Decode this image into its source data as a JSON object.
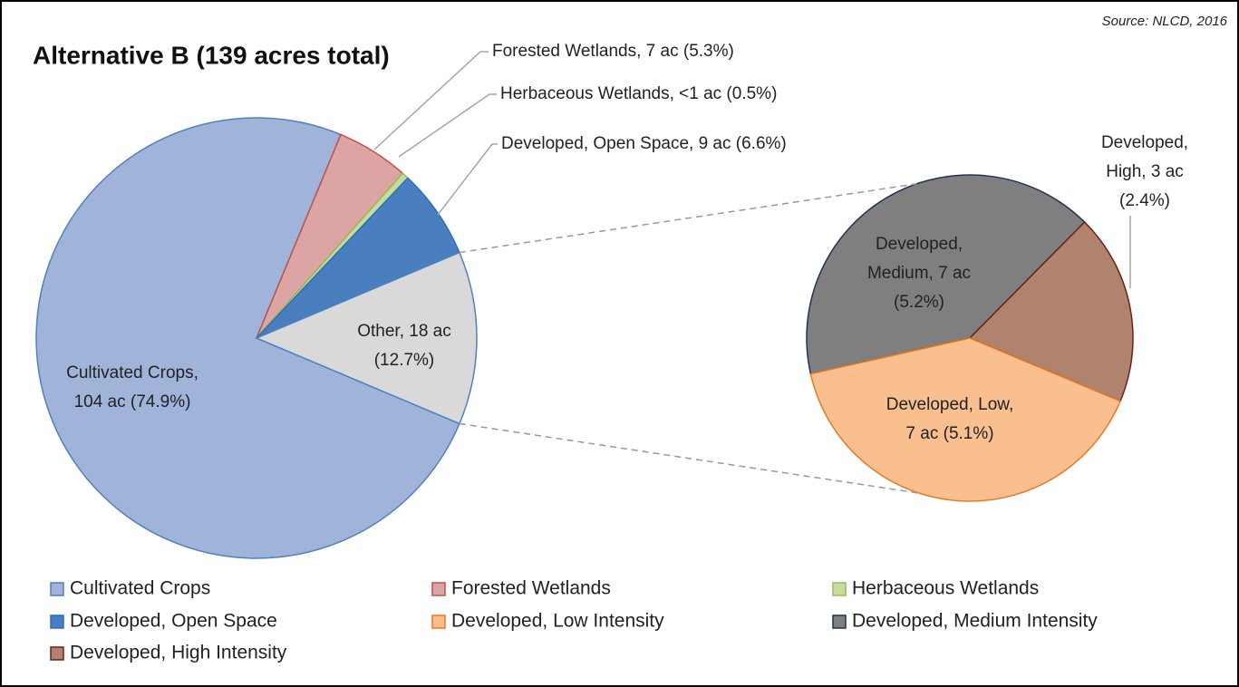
{
  "chart_data": {
    "type": "pie-of-pie",
    "title": "Alternative B (139 acres total)",
    "source": "Source:  NLCD, 2016",
    "pies": [
      {
        "values": [
          74.9,
          5.3,
          0.5,
          6.6,
          12.7
        ],
        "value_labels": [
          [
            "Cultivated Crops,",
            "104 ac (74.9%)"
          ],
          [
            "Forested Wetlands, 7 ac (5.3%)"
          ],
          [
            "Herbaceous Wetlands, <1 ac (0.5%)"
          ],
          [
            "Developed, Open Space, 9 ac (6.6%)"
          ],
          [
            "Other, 18 ac",
            "(12.7%)"
          ]
        ],
        "colors": [
          "#a0b4da",
          "#dca4a3",
          "#c4dd9f",
          "#4a7fbf",
          "#d9d9d9"
        ],
        "strokes": [
          "#4f81bd",
          "#c0504d",
          "#9bbb59",
          "#2e6db5",
          "#4f81bd"
        ]
      },
      {
        "values": [
          5.2,
          2.4,
          5.1
        ],
        "value_labels": [
          [
            "Developed,",
            "Medium, 7 ac",
            "(5.2%)"
          ],
          [
            "Developed,",
            "High, 3 ac",
            "(2.4%)"
          ],
          [
            "Developed, Low,",
            "7 ac (5.1%)"
          ]
        ],
        "colors": [
          "#7f7f7f",
          "#b0836f",
          "#f9bf8f"
        ],
        "strokes": [
          "#1f3552",
          "#6b2020",
          "#e8791f"
        ]
      }
    ],
    "legend": [
      {
        "name": "Cultivated Crops",
        "color": "#a0b4da",
        "stroke": "#4f81bd"
      },
      {
        "name": "Forested Wetlands",
        "color": "#dca4a3",
        "stroke": "#c0504d"
      },
      {
        "name": "Herbaceous Wetlands",
        "color": "#c4dd9f",
        "stroke": "#9bbb59"
      },
      {
        "name": "Developed, Open Space",
        "color": "#4a7fbf",
        "stroke": "#2e6db5"
      },
      {
        "name": "Developed, Low Intensity",
        "color": "#f9bf8f",
        "stroke": "#e8791f"
      },
      {
        "name": "Developed, Medium Intensity",
        "color": "#7f7f7f",
        "stroke": "#1f3552"
      },
      {
        "name": "Developed, High Intensity",
        "color": "#b0836f",
        "stroke": "#6b2020"
      }
    ]
  }
}
